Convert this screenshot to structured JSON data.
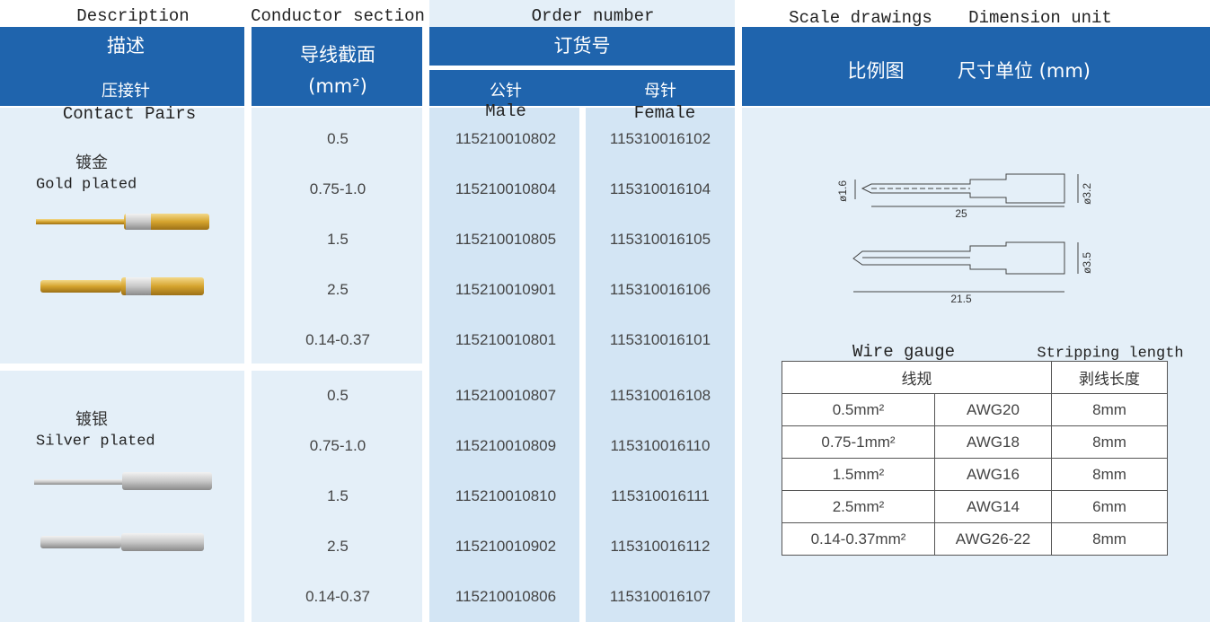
{
  "header": {
    "en": {
      "description": "Description",
      "conductor_section": "Conductor section",
      "order_number": "Order number",
      "scale_drawings": "Scale drawings",
      "dimension_unit": "Dimension unit"
    },
    "cn": {
      "description": "描述",
      "crimp_pin": "压接针",
      "conductor_section": "导线截面",
      "unit": "(mm²)",
      "order_number": "订货号",
      "male": "公针",
      "female": "母针",
      "scale_drawings": "比例图",
      "dimension_unit": "尺寸单位 (mm)"
    },
    "sub": {
      "contact_pairs": "Contact Pairs",
      "male": "Male",
      "female": "Female"
    }
  },
  "groups": [
    {
      "cn": "镀金",
      "en": "Gold plated",
      "rows": [
        [
          "0.5",
          "115210010802",
          "115310016102"
        ],
        [
          "0.75-1.0",
          "115210010804",
          "115310016104"
        ],
        [
          "1.5",
          "115210010805",
          "115310016105"
        ],
        [
          "2.5",
          "115210010901",
          "115310016106"
        ],
        [
          "0.14-0.37",
          "115210010801",
          "115310016101"
        ]
      ]
    },
    {
      "cn": "镀银",
      "en": "Silver plated",
      "rows": [
        [
          "0.5",
          "115210010807",
          "115310016108"
        ],
        [
          "0.75-1.0",
          "115210010809",
          "115310016110"
        ],
        [
          "1.5",
          "115210010810",
          "115310016111"
        ],
        [
          "2.5",
          "115210010902",
          "115310016112"
        ],
        [
          "0.14-0.37",
          "115210010806",
          "115310016107"
        ]
      ]
    }
  ],
  "drawing": {
    "labels": [
      "ø1.6",
      "25",
      "ø3.2",
      "ø3.5",
      "21.5"
    ]
  },
  "wire_table": {
    "title_en": "Wire gauge",
    "stripping_en": "Stripping length",
    "header": [
      "线规",
      "剥线长度"
    ],
    "rows": [
      [
        "0.5mm²",
        "AWG20",
        "8mm"
      ],
      [
        "0.75-1mm²",
        "AWG18",
        "8mm"
      ],
      [
        "1.5mm²",
        "AWG16",
        "8mm"
      ],
      [
        "2.5mm²",
        "AWG14",
        "6mm"
      ],
      [
        "0.14-0.37mm²",
        "AWG26-22",
        "8mm"
      ]
    ]
  }
}
